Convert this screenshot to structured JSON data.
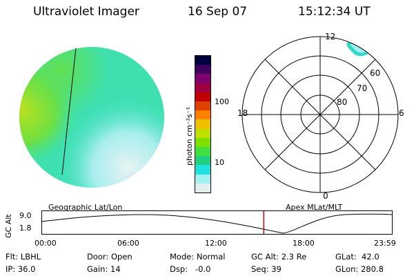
{
  "header": {
    "title": "Ultraviolet Imager",
    "date": "16 Sep 07",
    "time": "15:12:34 UT"
  },
  "colorbar": {
    "label": "photon cm⁻²s⁻¹",
    "ticks": [
      "100",
      "10"
    ],
    "colors": [
      "#000040",
      "#400060",
      "#800070",
      "#a00040",
      "#c00000",
      "#e04000",
      "#ff8000",
      "#f0c000",
      "#c0e000",
      "#80e000",
      "#40e040",
      "#20d080",
      "#20e0e0",
      "#a0f0f0",
      "#e0f0f0"
    ]
  },
  "polar_plot": {
    "mlt_labels": [
      "12",
      "18",
      "6",
      "0"
    ],
    "lat_labels": [
      "60",
      "70",
      "80"
    ]
  },
  "timeline": {
    "ylabel": "GC Alt",
    "y_ticks": [
      "9.0",
      "1.8"
    ],
    "left_caption": "Geographic Lat/Lon",
    "right_caption": "Apex  MLat/MLT",
    "x_ticks": [
      "00:00",
      "06:00",
      "12:00",
      "18:00",
      "23:59"
    ],
    "current_time_fraction": 0.6337,
    "current_marker_color": "#cc0000"
  },
  "status": {
    "flt": "Flt: LBHL",
    "ip": "IP: 36.0",
    "door": "Door: Open",
    "gain": "Gain: 14",
    "mode": "Mode: Normal",
    "dsp": "Dsp:   -0.0",
    "gc_alt": "GC Alt: 2.3 Re",
    "seq": "Seq: 39",
    "glat": "GLat:  42.0",
    "glon": "GLon: 280.8"
  }
}
